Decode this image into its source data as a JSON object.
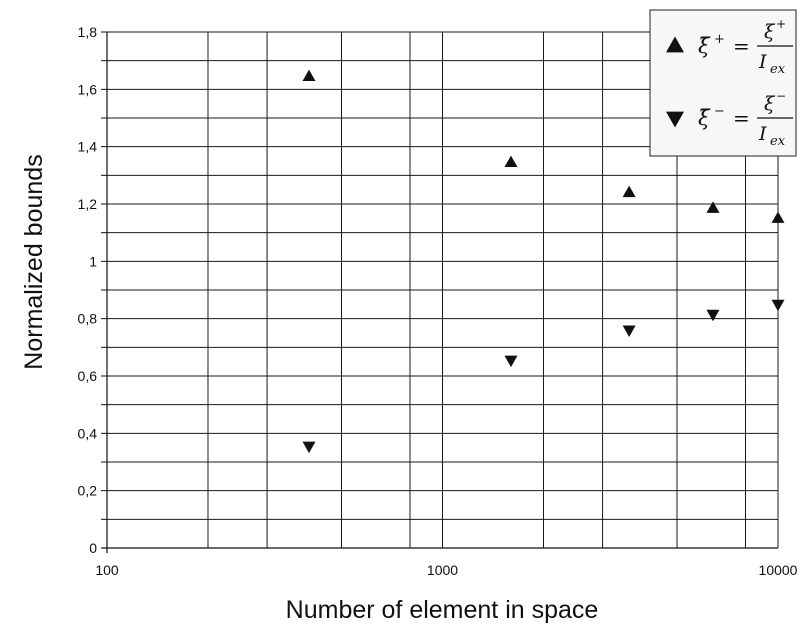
{
  "chart_data": {
    "type": "scatter",
    "xscale": "log",
    "xlim": [
      100,
      10000
    ],
    "ylim": [
      0,
      1.8
    ],
    "grid": true,
    "xlabel": "Number of element in space",
    "ylabel": "Normalized bounds",
    "x_tick_labels": [
      "100",
      "1000",
      "10000"
    ],
    "y_tick_labels": [
      "0",
      "0,2",
      "0,4",
      "0,6",
      "0,8",
      "1",
      "1,2",
      "1,4",
      "1,6",
      "1,8"
    ],
    "legend_position": "top-right",
    "series": [
      {
        "label_math": {
          "sym": "ξ̄",
          "sup": "+",
          "num": "ξ",
          "num_sup": "+",
          "den": "I",
          "den_sub": "ex"
        },
        "marker": "triangle-up",
        "color": "#111111",
        "x": [
          400,
          1600,
          3600,
          6400,
          10000
        ],
        "y": [
          1.645,
          1.345,
          1.24,
          1.185,
          1.15
        ]
      },
      {
        "label_math": {
          "sym": "ξ̄",
          "sup": "−",
          "num": "ξ",
          "num_sup": "−",
          "den": "I",
          "den_sub": "ex"
        },
        "marker": "triangle-down",
        "color": "#111111",
        "x": [
          400,
          1600,
          3600,
          6400,
          10000
        ],
        "y": [
          0.355,
          0.655,
          0.76,
          0.815,
          0.85
        ]
      }
    ]
  }
}
